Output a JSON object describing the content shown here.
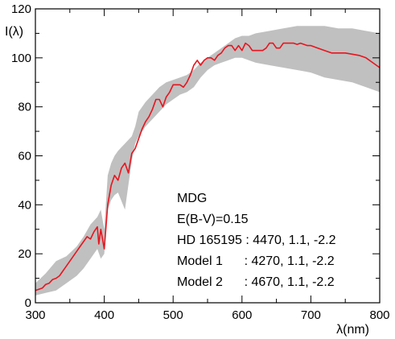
{
  "chart_data": {
    "type": "line",
    "xlabel": "λ(nm)",
    "ylabel": "I(λ)",
    "xlim": [
      300,
      800
    ],
    "ylim": [
      0,
      120
    ],
    "x_ticks": [
      300,
      400,
      500,
      600,
      700,
      800
    ],
    "y_ticks": [
      0,
      20,
      40,
      60,
      80,
      100,
      120
    ],
    "x_minor_step": 50,
    "y_minor_step": 10,
    "grid": false,
    "band": {
      "color": "#c0c0c0",
      "x": [
        300,
        315,
        330,
        345,
        360,
        370,
        380,
        390,
        395,
        400,
        405,
        410,
        415,
        420,
        430,
        440,
        445,
        450,
        460,
        470,
        480,
        490,
        500,
        510,
        520,
        530,
        540,
        550,
        560,
        570,
        580,
        590,
        600,
        610,
        620,
        640,
        660,
        680,
        700,
        720,
        740,
        760,
        780,
        800
      ],
      "upper": [
        8,
        12,
        17,
        19,
        23,
        27,
        32,
        35,
        38,
        30,
        52,
        57,
        60,
        62,
        65,
        68,
        72,
        78,
        82,
        85,
        88,
        90,
        91,
        92,
        93,
        95,
        98,
        100,
        102,
        104,
        106,
        108,
        109,
        109,
        110,
        111,
        112,
        113,
        113,
        113,
        112,
        112,
        111,
        110
      ],
      "lower": [
        3,
        4,
        5,
        8,
        11,
        14,
        18,
        22,
        18,
        20,
        38,
        42,
        44,
        45,
        38,
        58,
        65,
        68,
        72,
        75,
        78,
        81,
        83,
        85,
        86,
        88,
        92,
        95,
        97,
        98,
        99,
        100,
        100,
        99,
        98,
        97,
        96,
        95,
        94,
        92,
        91,
        90,
        88,
        86
      ]
    },
    "series": [
      {
        "color": "#e8141e",
        "x": [
          300,
          305,
          310,
          315,
          320,
          325,
          330,
          335,
          340,
          345,
          350,
          355,
          360,
          365,
          370,
          375,
          380,
          385,
          390,
          392,
          395,
          400,
          405,
          410,
          415,
          420,
          425,
          430,
          435,
          440,
          445,
          450,
          455,
          460,
          465,
          470,
          475,
          480,
          485,
          490,
          495,
          500,
          505,
          510,
          515,
          520,
          525,
          530,
          535,
          540,
          545,
          550,
          555,
          560,
          565,
          570,
          575,
          580,
          585,
          590,
          595,
          600,
          605,
          610,
          615,
          620,
          625,
          630,
          635,
          640,
          645,
          650,
          655,
          660,
          665,
          670,
          675,
          680,
          685,
          690,
          695,
          700,
          710,
          720,
          730,
          740,
          750,
          760,
          770,
          780,
          790,
          800
        ],
        "y": [
          5,
          5.5,
          6,
          7.5,
          8,
          9.5,
          10,
          11,
          13,
          15,
          17,
          19,
          21,
          23,
          25,
          27,
          26,
          29,
          31,
          24,
          30,
          22,
          40,
          48,
          52,
          50,
          55,
          57,
          53,
          61,
          63,
          67,
          71,
          74,
          76,
          79,
          83,
          83,
          80,
          84,
          86,
          89,
          89,
          89,
          88,
          90,
          93,
          97,
          99,
          97,
          99,
          100,
          100,
          99,
          101,
          102,
          104,
          105,
          105,
          103,
          105,
          103,
          106,
          105,
          103,
          103,
          103,
          103,
          104,
          106,
          106,
          104,
          104,
          106,
          106,
          106,
          106,
          105.5,
          106,
          105.5,
          105,
          105,
          104,
          103,
          102,
          102,
          102,
          101.5,
          101,
          100,
          98,
          96
        ]
      }
    ],
    "annotations": [
      "MDG",
      "E(B-V)=0.15",
      "HD 165195 : 4470, 1.1, -2.2",
      "Model 1      : 4270, 1.1, -2.2",
      "Model 2      : 4670, 1.1, -2.2"
    ]
  }
}
